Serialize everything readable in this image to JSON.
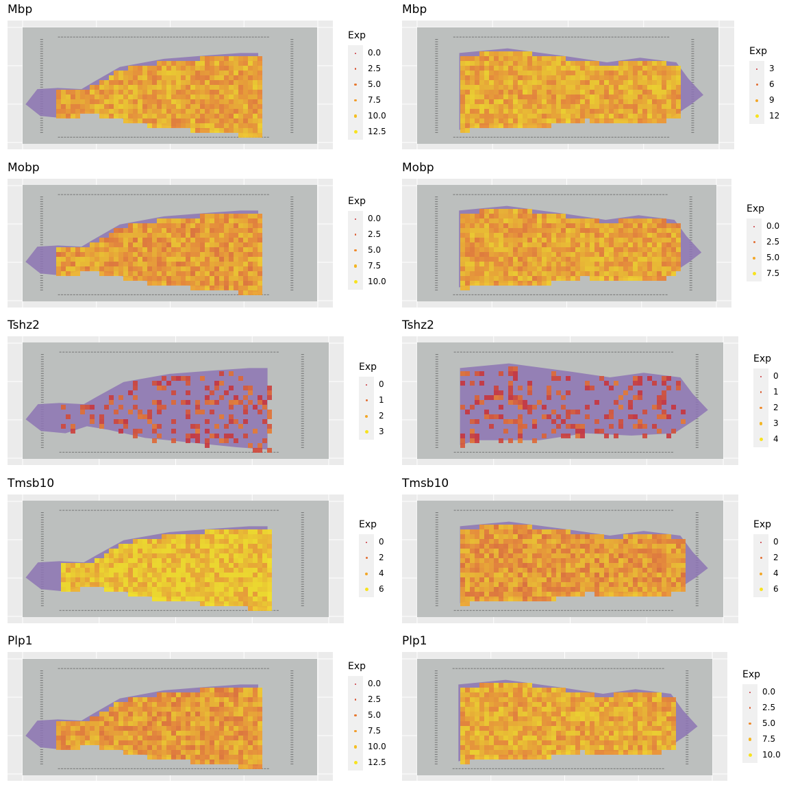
{
  "legend_title": "Exp",
  "colors": {
    "panel_bg": "#ebebeb",
    "grid": "#ffffff",
    "tissue_slide": "#bcbfbe",
    "he_purple": "#8d74b4",
    "he_dark": "#5b3f7d",
    "low": "#c8323a",
    "mid": "#ef8a2c",
    "high": "#f7e21e"
  },
  "chart_data": [
    {
      "type": "scatter",
      "title": "Mbp",
      "section": "coronal-a",
      "legend_breaks": [
        "0.0",
        "2.5",
        "5.0",
        "7.5",
        "10.0",
        "12.5"
      ],
      "expression_level": 0.68
    },
    {
      "type": "scatter",
      "title": "Mbp",
      "section": "sagittal-b",
      "legend_breaks": [
        "3",
        "6",
        "9",
        "12"
      ],
      "expression_level": 0.7
    },
    {
      "type": "scatter",
      "title": "Mobp",
      "section": "coronal-a",
      "legend_breaks": [
        "0.0",
        "2.5",
        "5.0",
        "7.5",
        "10.0"
      ],
      "expression_level": 0.62
    },
    {
      "type": "scatter",
      "title": "Mobp",
      "section": "sagittal-b",
      "legend_breaks": [
        "0.0",
        "2.5",
        "5.0",
        "7.5"
      ],
      "expression_level": 0.66
    },
    {
      "type": "scatter",
      "title": "Tshz2",
      "section": "coronal-a",
      "legend_breaks": [
        "0",
        "1",
        "2",
        "3"
      ],
      "expression_level": 0.18
    },
    {
      "type": "scatter",
      "title": "Tshz2",
      "section": "sagittal-b",
      "legend_breaks": [
        "0",
        "1",
        "2",
        "3",
        "4"
      ],
      "expression_level": 0.16
    },
    {
      "type": "scatter",
      "title": "Tmsb10",
      "section": "coronal-a",
      "legend_breaks": [
        "0",
        "2",
        "4",
        "6"
      ],
      "expression_level": 0.86
    },
    {
      "type": "scatter",
      "title": "Tmsb10",
      "section": "sagittal-b",
      "legend_breaks": [
        "0",
        "2",
        "4",
        "6"
      ],
      "expression_level": 0.6
    },
    {
      "type": "scatter",
      "title": "Plp1",
      "section": "coronal-a",
      "legend_breaks": [
        "0.0",
        "2.5",
        "5.0",
        "7.5",
        "10.0",
        "12.5"
      ],
      "expression_level": 0.62
    },
    {
      "type": "scatter",
      "title": "Plp1",
      "section": "sagittal-b",
      "legend_breaks": [
        "0.0",
        "2.5",
        "5.0",
        "7.5",
        "10.0"
      ],
      "expression_level": 0.7
    }
  ]
}
